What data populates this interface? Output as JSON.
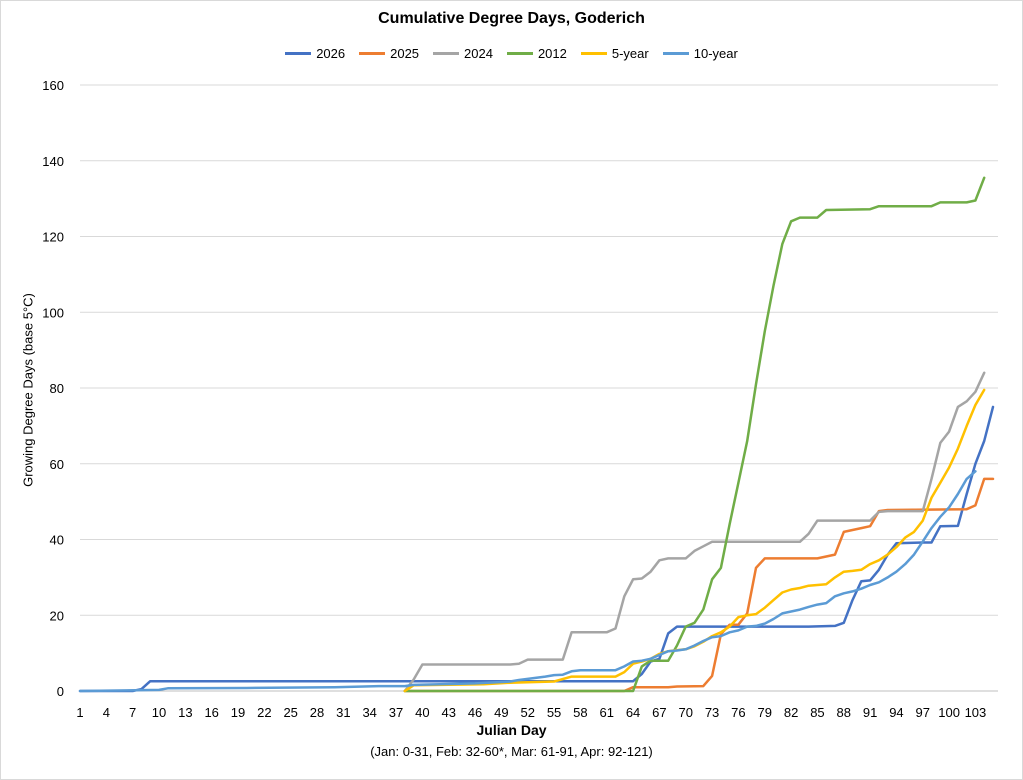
{
  "chart_data": {
    "type": "line",
    "title": "Cumulative Degree Days, Goderich",
    "xlabel": "Julian Day",
    "x_note": "(Jan: 0-31, Feb: 32-60*, Mar: 61-91, Apr: 92-121)",
    "ylabel": "Growing Degree Days (base 5°C)",
    "ylim": [
      0,
      160
    ],
    "yticks": [
      0,
      20,
      40,
      60,
      80,
      100,
      120,
      140,
      160
    ],
    "xlim": [
      1,
      105
    ],
    "xticks": [
      1,
      4,
      7,
      10,
      13,
      16,
      19,
      22,
      25,
      28,
      31,
      34,
      37,
      40,
      43,
      46,
      49,
      52,
      55,
      58,
      61,
      64,
      67,
      70,
      73,
      76,
      79,
      82,
      85,
      88,
      91,
      94,
      97,
      100,
      103
    ],
    "grid": "horizontal",
    "legend_position": "top",
    "series": [
      {
        "name": "2026",
        "color": "#4472C4",
        "points": [
          [
            1,
            0
          ],
          [
            7,
            0
          ],
          [
            8,
            0.5
          ],
          [
            9,
            2.6
          ],
          [
            40,
            2.6
          ],
          [
            52,
            2.6
          ],
          [
            64,
            2.6
          ],
          [
            65,
            4.5
          ],
          [
            66,
            7.8
          ],
          [
            67,
            8.5
          ],
          [
            68,
            15.2
          ],
          [
            69,
            17
          ],
          [
            74,
            17
          ],
          [
            76,
            17
          ],
          [
            78,
            17
          ],
          [
            84,
            17
          ],
          [
            87,
            17.2
          ],
          [
            88,
            18
          ],
          [
            89,
            24
          ],
          [
            90,
            29
          ],
          [
            91,
            29.2
          ],
          [
            92,
            32
          ],
          [
            93,
            36
          ],
          [
            94,
            39
          ],
          [
            97,
            39.2
          ],
          [
            98,
            39.2
          ],
          [
            99,
            43.5
          ],
          [
            101,
            43.6
          ],
          [
            102,
            52
          ],
          [
            103,
            60
          ],
          [
            104,
            66
          ],
          [
            105,
            75
          ]
        ]
      },
      {
        "name": "2025",
        "color": "#ED7D31",
        "points": [
          [
            38,
            0
          ],
          [
            63,
            0
          ],
          [
            64,
            1
          ],
          [
            68,
            1
          ],
          [
            69,
            1.2
          ],
          [
            72,
            1.3
          ],
          [
            73,
            4
          ],
          [
            74,
            15
          ],
          [
            75,
            17.5
          ],
          [
            76,
            17.5
          ],
          [
            77,
            20.5
          ],
          [
            78,
            32.5
          ],
          [
            79,
            35
          ],
          [
            85,
            35
          ],
          [
            86,
            35.5
          ],
          [
            87,
            36
          ],
          [
            88,
            42
          ],
          [
            89,
            42.5
          ],
          [
            90,
            43
          ],
          [
            91,
            43.5
          ],
          [
            92,
            47.5
          ],
          [
            93,
            47.8
          ],
          [
            102,
            48
          ],
          [
            103,
            49
          ],
          [
            104,
            56
          ],
          [
            105,
            56
          ]
        ]
      },
      {
        "name": "2024",
        "color": "#A5A5A5",
        "points": [
          [
            38,
            0
          ],
          [
            39,
            3
          ],
          [
            40,
            7
          ],
          [
            50,
            7
          ],
          [
            51,
            7.2
          ],
          [
            52,
            8.3
          ],
          [
            56,
            8.3
          ],
          [
            57,
            15.5
          ],
          [
            61,
            15.5
          ],
          [
            62,
            16.5
          ],
          [
            63,
            25
          ],
          [
            64,
            29.5
          ],
          [
            65,
            29.7
          ],
          [
            66,
            31.5
          ],
          [
            67,
            34.5
          ],
          [
            68,
            35
          ],
          [
            70,
            35
          ],
          [
            71,
            37
          ],
          [
            72,
            38.2
          ],
          [
            73,
            39.4
          ],
          [
            83,
            39.4
          ],
          [
            84,
            41.5
          ],
          [
            85,
            45
          ],
          [
            91,
            45
          ],
          [
            92,
            47.3
          ],
          [
            93,
            47.5
          ],
          [
            96,
            47.5
          ],
          [
            97,
            47.5
          ],
          [
            98,
            56
          ],
          [
            99,
            65.5
          ],
          [
            100,
            68.5
          ],
          [
            101,
            75
          ],
          [
            102,
            76.5
          ],
          [
            103,
            79
          ],
          [
            104,
            84
          ]
        ]
      },
      {
        "name": "2012",
        "color": "#70AD47",
        "points": [
          [
            38,
            0
          ],
          [
            64,
            0
          ],
          [
            65,
            6.5
          ],
          [
            66,
            8
          ],
          [
            67,
            8
          ],
          [
            68,
            8
          ],
          [
            69,
            12
          ],
          [
            70,
            17
          ],
          [
            71,
            18
          ],
          [
            72,
            21.5
          ],
          [
            73,
            29.5
          ],
          [
            74,
            32.5
          ],
          [
            75,
            44
          ],
          [
            76,
            55
          ],
          [
            77,
            66
          ],
          [
            78,
            81
          ],
          [
            79,
            95
          ],
          [
            80,
            107
          ],
          [
            81,
            118
          ],
          [
            82,
            124
          ],
          [
            83,
            125
          ],
          [
            84,
            125
          ],
          [
            85,
            125
          ],
          [
            86,
            127
          ],
          [
            91,
            127.2
          ],
          [
            92,
            128
          ],
          [
            98,
            128
          ],
          [
            99,
            129
          ],
          [
            101,
            129
          ],
          [
            102,
            129
          ],
          [
            103,
            129.5
          ],
          [
            104,
            135.5
          ]
        ]
      },
      {
        "name": "5-year",
        "color": "#FFC000",
        "points": [
          [
            38,
            0
          ],
          [
            39,
            1.5
          ],
          [
            47,
            1.8
          ],
          [
            50,
            2.2
          ],
          [
            55,
            2.5
          ],
          [
            57,
            3.8
          ],
          [
            62,
            3.8
          ],
          [
            63,
            5
          ],
          [
            64,
            7.2
          ],
          [
            65,
            7.8
          ],
          [
            66,
            8.5
          ],
          [
            67,
            9.8
          ],
          [
            68,
            10.5
          ],
          [
            69,
            10.8
          ],
          [
            70,
            11
          ],
          [
            71,
            11.8
          ],
          [
            72,
            13
          ],
          [
            73,
            14.5
          ],
          [
            74,
            15.5
          ],
          [
            75,
            17
          ],
          [
            76,
            19.5
          ],
          [
            77,
            20
          ],
          [
            78,
            20.3
          ],
          [
            79,
            22
          ],
          [
            80,
            24
          ],
          [
            81,
            26
          ],
          [
            82,
            26.8
          ],
          [
            83,
            27.2
          ],
          [
            84,
            27.8
          ],
          [
            85,
            28
          ],
          [
            86,
            28.2
          ],
          [
            87,
            30
          ],
          [
            88,
            31.5
          ],
          [
            89,
            31.7
          ],
          [
            90,
            32
          ],
          [
            91,
            33.5
          ],
          [
            92,
            34.5
          ],
          [
            93,
            36
          ],
          [
            94,
            38
          ],
          [
            95,
            40.5
          ],
          [
            96,
            42
          ],
          [
            97,
            45
          ],
          [
            98,
            51
          ],
          [
            99,
            55
          ],
          [
            100,
            59
          ],
          [
            101,
            64
          ],
          [
            102,
            70
          ],
          [
            103,
            75.5
          ],
          [
            104,
            79.5
          ]
        ]
      },
      {
        "name": "10-year",
        "color": "#5B9BD5",
        "points": [
          [
            1,
            0
          ],
          [
            10,
            0.3
          ],
          [
            11,
            0.7
          ],
          [
            20,
            0.8
          ],
          [
            30,
            1
          ],
          [
            35,
            1.3
          ],
          [
            38,
            1.3
          ],
          [
            39,
            1.6
          ],
          [
            42,
            1.8
          ],
          [
            46,
            2
          ],
          [
            50,
            2.5
          ],
          [
            51,
            2.9
          ],
          [
            53,
            3.5
          ],
          [
            54,
            3.8
          ],
          [
            55,
            4.2
          ],
          [
            56,
            4.3
          ],
          [
            57,
            5.2
          ],
          [
            58,
            5.5
          ],
          [
            62,
            5.5
          ],
          [
            63,
            6.5
          ],
          [
            64,
            7.8
          ],
          [
            65,
            8
          ],
          [
            66,
            8.5
          ],
          [
            67,
            9.5
          ],
          [
            68,
            10.5
          ],
          [
            69,
            10.7
          ],
          [
            70,
            11
          ],
          [
            71,
            12
          ],
          [
            72,
            13.2
          ],
          [
            73,
            14.2
          ],
          [
            74,
            14.5
          ],
          [
            75,
            15.5
          ],
          [
            76,
            16
          ],
          [
            77,
            17
          ],
          [
            78,
            17.2
          ],
          [
            79,
            17.8
          ],
          [
            80,
            19
          ],
          [
            81,
            20.5
          ],
          [
            82,
            21
          ],
          [
            83,
            21.5
          ],
          [
            84,
            22.2
          ],
          [
            85,
            22.8
          ],
          [
            86,
            23.2
          ],
          [
            87,
            25
          ],
          [
            88,
            25.8
          ],
          [
            89,
            26.3
          ],
          [
            90,
            27
          ],
          [
            91,
            28
          ],
          [
            92,
            28.7
          ],
          [
            93,
            30
          ],
          [
            94,
            31.5
          ],
          [
            95,
            33.5
          ],
          [
            96,
            36
          ],
          [
            97,
            39.5
          ],
          [
            98,
            43
          ],
          [
            99,
            46
          ],
          [
            100,
            48.5
          ],
          [
            101,
            52
          ],
          [
            102,
            56
          ],
          [
            103,
            58
          ]
        ]
      }
    ]
  }
}
